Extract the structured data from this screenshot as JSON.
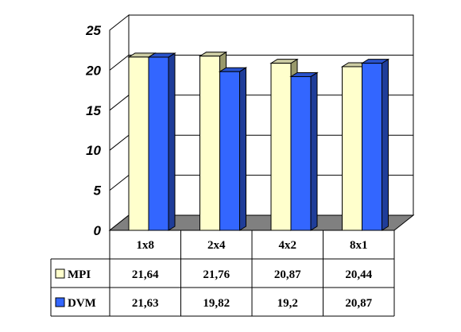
{
  "chart_data": {
    "type": "bar",
    "categories": [
      "1x8",
      "2x4",
      "4x2",
      "8x1"
    ],
    "series": [
      {
        "name": "MPI",
        "values": [
          21.64,
          21.76,
          20.87,
          20.44
        ],
        "labels": [
          "21,64",
          "21,76",
          "20,87",
          "20,44"
        ],
        "color": "#FFFFCC",
        "side_color": "#99996B",
        "top_color": "#CCCCA3"
      },
      {
        "name": "DVM",
        "values": [
          21.63,
          19.82,
          19.2,
          20.87
        ],
        "labels": [
          "21,63",
          "19,82",
          "19,2",
          "20,87"
        ],
        "color": "#3366FF",
        "side_color": "#1F3D99",
        "top_color": "#2952CC"
      }
    ],
    "ylim": [
      0,
      25
    ],
    "yticks": [
      "0",
      "5",
      "10",
      "15",
      "20",
      "25"
    ],
    "grid": true,
    "legend": "data-table-left",
    "wall_color": "#FFFFFF",
    "floor_color": "#808080"
  }
}
